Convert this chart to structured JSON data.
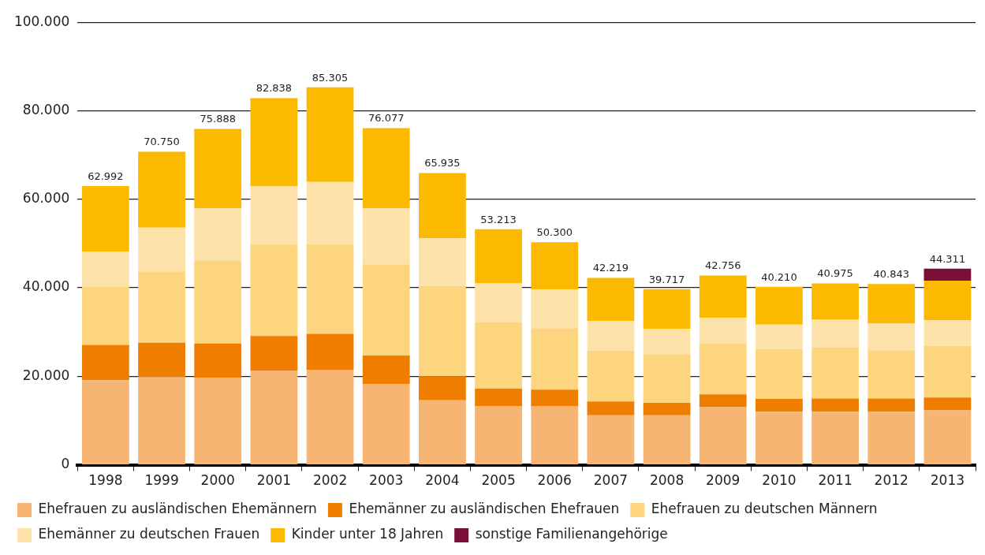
{
  "chart_data": {
    "type": "bar",
    "stacked": true,
    "categories": [
      "1998",
      "1999",
      "2000",
      "2001",
      "2002",
      "2003",
      "2004",
      "2005",
      "2006",
      "2007",
      "2008",
      "2009",
      "2010",
      "2011",
      "2012",
      "2013"
    ],
    "series": [
      {
        "name": "Ehefrauen zu ausländischen Ehemännern",
        "color": "#f7b573",
        "values": [
          19100,
          19800,
          19600,
          21300,
          21500,
          18200,
          14600,
          13300,
          13300,
          11200,
          11200,
          13000,
          12000,
          12000,
          12000,
          12300
        ]
      },
      {
        "name": "Ehemänner zu ausländischen Ehefrauen",
        "color": "#ee7d00",
        "values": [
          8000,
          7800,
          7800,
          7800,
          8100,
          6500,
          5400,
          3900,
          3700,
          3100,
          2800,
          2900,
          2900,
          3000,
          3000,
          2900
        ]
      },
      {
        "name": "Ehefrauen zu deutschen Männern",
        "color": "#fdd57e",
        "values": [
          13200,
          16100,
          18800,
          20800,
          20200,
          20600,
          20400,
          15000,
          13900,
          11500,
          10900,
          11500,
          11200,
          11500,
          10900,
          11700
        ]
      },
      {
        "name": "Ehemänner zu deutschen Frauen",
        "color": "#fde2aa",
        "values": [
          7900,
          9900,
          11800,
          13000,
          14100,
          12700,
          10800,
          8800,
          8700,
          6700,
          5800,
          5800,
          5600,
          6300,
          6000,
          5800
        ]
      },
      {
        "name": "Kinder unter 18 Jahren",
        "color": "#fbb900",
        "values": [
          14792,
          17150,
          17888,
          19938,
          21405,
          18077,
          14735,
          12213,
          10700,
          9719,
          9017,
          9556,
          8510,
          8175,
          8943,
          8911
        ]
      },
      {
        "name": "sonstige Familienangehörige",
        "color": "#7a1038",
        "values": [
          null,
          null,
          null,
          null,
          null,
          null,
          null,
          null,
          null,
          null,
          null,
          null,
          null,
          null,
          null,
          2700
        ]
      }
    ],
    "totals": [
      "62.992",
      "70.750",
      "75.888",
      "82.838",
      "85.305",
      "76.077",
      "65.935",
      "53.213",
      "50.300",
      "42.219",
      "39.717",
      "42.756",
      "40.210",
      "40.975",
      "40.843",
      "44.311"
    ],
    "ylim": [
      0,
      100000
    ],
    "yticks": [
      {
        "value": 0,
        "label": "0"
      },
      {
        "value": 20000,
        "label": "20.000"
      },
      {
        "value": 40000,
        "label": "40.000"
      },
      {
        "value": 60000,
        "label": "60.000"
      },
      {
        "value": 80000,
        "label": "80.000"
      },
      {
        "value": 100000,
        "label": "100.000"
      }
    ],
    "grid": "y",
    "legend": "bottom"
  }
}
